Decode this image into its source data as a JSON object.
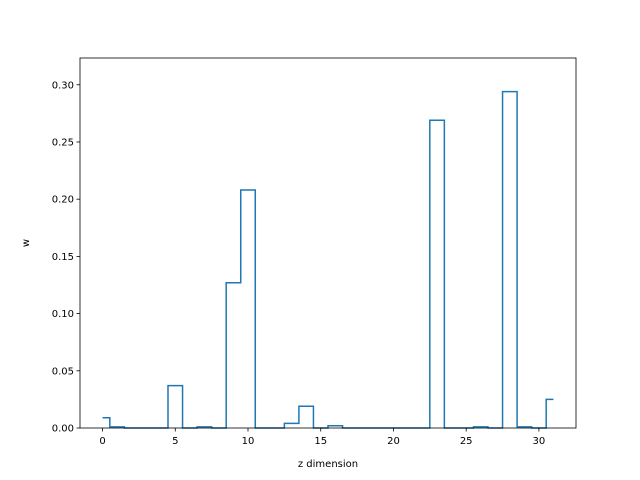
{
  "chart_data": {
    "type": "step",
    "title": "",
    "xlabel": "z dimension",
    "ylabel": "w",
    "xlim": [
      -1.55,
      32.55
    ],
    "ylim": [
      0,
      0.3234
    ],
    "xticks": [
      0,
      5,
      10,
      15,
      20,
      25,
      30
    ],
    "xtick_labels": [
      "0",
      "5",
      "10",
      "15",
      "20",
      "25",
      "30"
    ],
    "yticks": [
      0.0,
      0.05,
      0.1,
      0.15,
      0.2,
      0.25,
      0.3
    ],
    "ytick_labels": [
      "0.00",
      "0.05",
      "0.10",
      "0.15",
      "0.20",
      "0.25",
      "0.30"
    ],
    "grid": false,
    "series": [
      {
        "color": "#1f77b4",
        "step_where": "mid",
        "x": [
          0,
          1,
          2,
          3,
          4,
          5,
          6,
          7,
          8,
          9,
          10,
          11,
          12,
          13,
          14,
          15,
          16,
          17,
          18,
          19,
          20,
          21,
          22,
          23,
          24,
          25,
          26,
          27,
          28,
          29,
          30,
          31
        ],
        "values": [
          0.009,
          0.001,
          0.0,
          0.0,
          0.0,
          0.037,
          0.0,
          0.001,
          0.0,
          0.127,
          0.208,
          0.0,
          0.0,
          0.004,
          0.019,
          0.0,
          0.002,
          0.0,
          0.0,
          0.0,
          0.0,
          0.0,
          0.0,
          0.269,
          0.0,
          0.0,
          0.001,
          0.0,
          0.294,
          0.001,
          0.0,
          0.025
        ]
      }
    ]
  }
}
